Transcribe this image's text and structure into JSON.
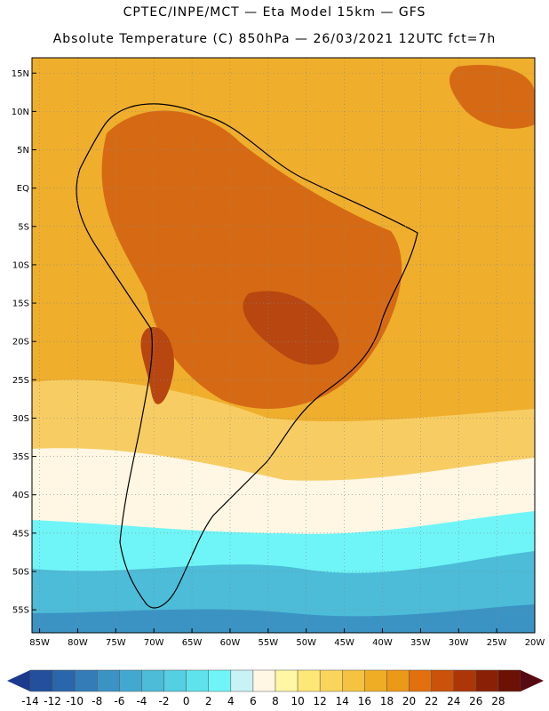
{
  "header": {
    "line1": "CPTEC/INPE/MCT —  Eta Model 15km — GFS",
    "line2": "Absolute Temperature (C) 850hPa — 26/03/2021 12UTC fct=7h"
  },
  "axes": {
    "lat_ticks": [
      "15N",
      "10N",
      "5N",
      "EQ",
      "5S",
      "10S",
      "15S",
      "20S",
      "25S",
      "30S",
      "35S",
      "40S",
      "45S",
      "50S",
      "55S"
    ],
    "lon_ticks": [
      "85W",
      "80W",
      "75W",
      "70W",
      "65W",
      "60W",
      "55W",
      "50W",
      "45W",
      "40W",
      "35W",
      "30W",
      "25W",
      "20W"
    ],
    "lat_range": [
      -58,
      17
    ],
    "lon_range": [
      -86,
      -20
    ],
    "grid": "dotted"
  },
  "colorbar": {
    "labels": [
      "-14",
      "-12",
      "-10",
      "-8",
      "-6",
      "-4",
      "-2",
      "0",
      "2",
      "4",
      "6",
      "8",
      "10",
      "12",
      "14",
      "16",
      "18",
      "20",
      "22",
      "24",
      "26",
      "28"
    ],
    "colors": [
      "#1b3a8c",
      "#22509c",
      "#2a66aa",
      "#347cb8",
      "#3b93c4",
      "#43a8cf",
      "#4cbcd8",
      "#55cfe2",
      "#5fe2ec",
      "#6ff5f7",
      "#c9f2f7",
      "#fff7e3",
      "#fff7a3",
      "#fde777",
      "#f9d55c",
      "#f4c342",
      "#efad25",
      "#ec9818",
      "#e2700f",
      "#cb520b",
      "#ac3608",
      "#8a2006",
      "#6b1106",
      "#560a12"
    ]
  },
  "background_color": "#efae2c",
  "map_feature_colors": {
    "ocean_north": "#f0aa24",
    "hot_core": "#d66a14",
    "very_hot": "#b74610",
    "mild_south": "#f7cd63",
    "cool_south": "#fff7e3",
    "cold_ocean": "#6ff5f7",
    "colder_ocean": "#4cbcd8",
    "coldest_ocean": "#3b93c4"
  }
}
